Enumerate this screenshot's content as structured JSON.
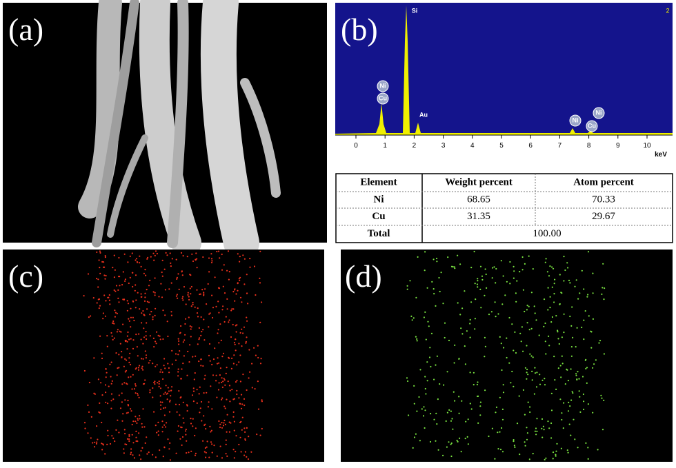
{
  "panels": {
    "a": {
      "label": "(a)"
    },
    "b": {
      "label": "(b)",
      "spectrum": {
        "corner_label": "2",
        "peak_labels": [
          "Si",
          "Ni",
          "Cu",
          "Au",
          "Ni",
          "Cu",
          "Ni"
        ],
        "xticks": [
          0,
          1,
          2,
          3,
          4,
          5,
          6,
          7,
          8,
          9,
          10
        ],
        "xlabel": "keV"
      },
      "table": {
        "header": [
          "Element",
          "Weight percent",
          "Atom percent"
        ],
        "rows": [
          [
            "Ni",
            "68.65",
            "70.33"
          ],
          [
            "Cu",
            "31.35",
            "29.67"
          ],
          [
            "Total",
            "100.00"
          ]
        ]
      }
    },
    "c": {
      "label": "(c)"
    },
    "d": {
      "label": "(d)"
    }
  }
}
